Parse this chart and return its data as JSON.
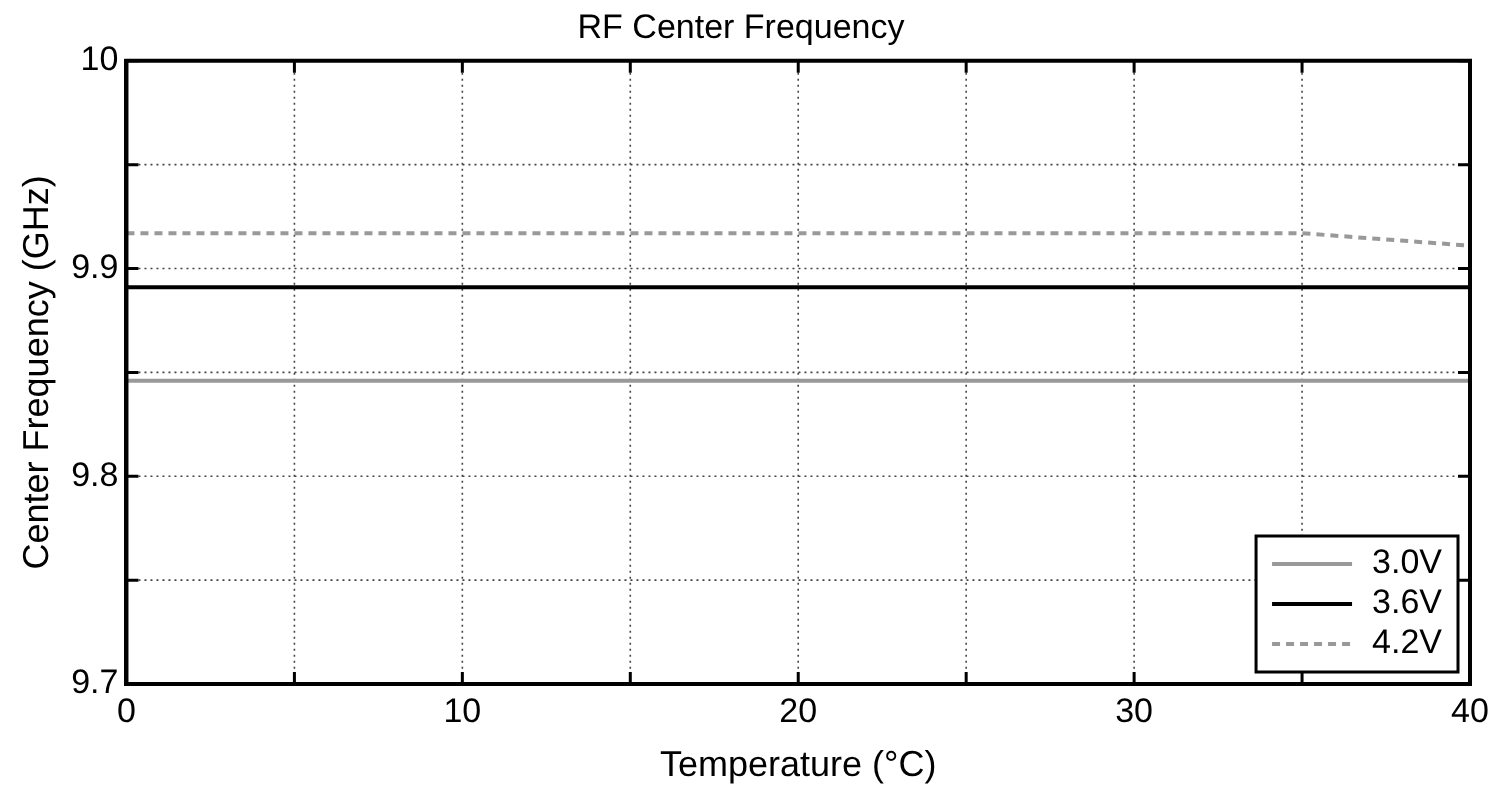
{
  "chart_data": {
    "type": "line",
    "title": "RF Center Frequency",
    "xlabel": "Temperature (°C)",
    "ylabel": "Center Frequency (GHz)",
    "x": [
      0,
      35,
      40
    ],
    "series": [
      {
        "name": "3.0V",
        "color": "#999999",
        "values": [
          9.846,
          9.846,
          9.846
        ],
        "line_style": "solid"
      },
      {
        "name": "3.6V",
        "color": "#000000",
        "values": [
          9.891,
          9.891,
          9.891
        ],
        "line_style": "solid"
      },
      {
        "name": "4.2V",
        "color": "#999999",
        "values": [
          9.917,
          9.917,
          9.911
        ],
        "line_style": "dashed"
      }
    ],
    "xlim": [
      0,
      40
    ],
    "ylim": [
      9.7,
      10
    ],
    "xticks": [
      0,
      {
        "value": 5,
        "label": null
      },
      10,
      {
        "value": 15,
        "label": null
      },
      20,
      {
        "value": 25,
        "label": null
      },
      30,
      {
        "value": 35,
        "label": null
      },
      40
    ],
    "yticks": [
      9.7,
      {
        "value": 9.75,
        "label": null
      },
      9.8,
      {
        "value": 9.85,
        "label": null
      },
      9.9,
      {
        "value": 9.95,
        "label": null
      },
      10
    ],
    "grid": true,
    "legend": "bottom right",
    "marker": "none"
  }
}
